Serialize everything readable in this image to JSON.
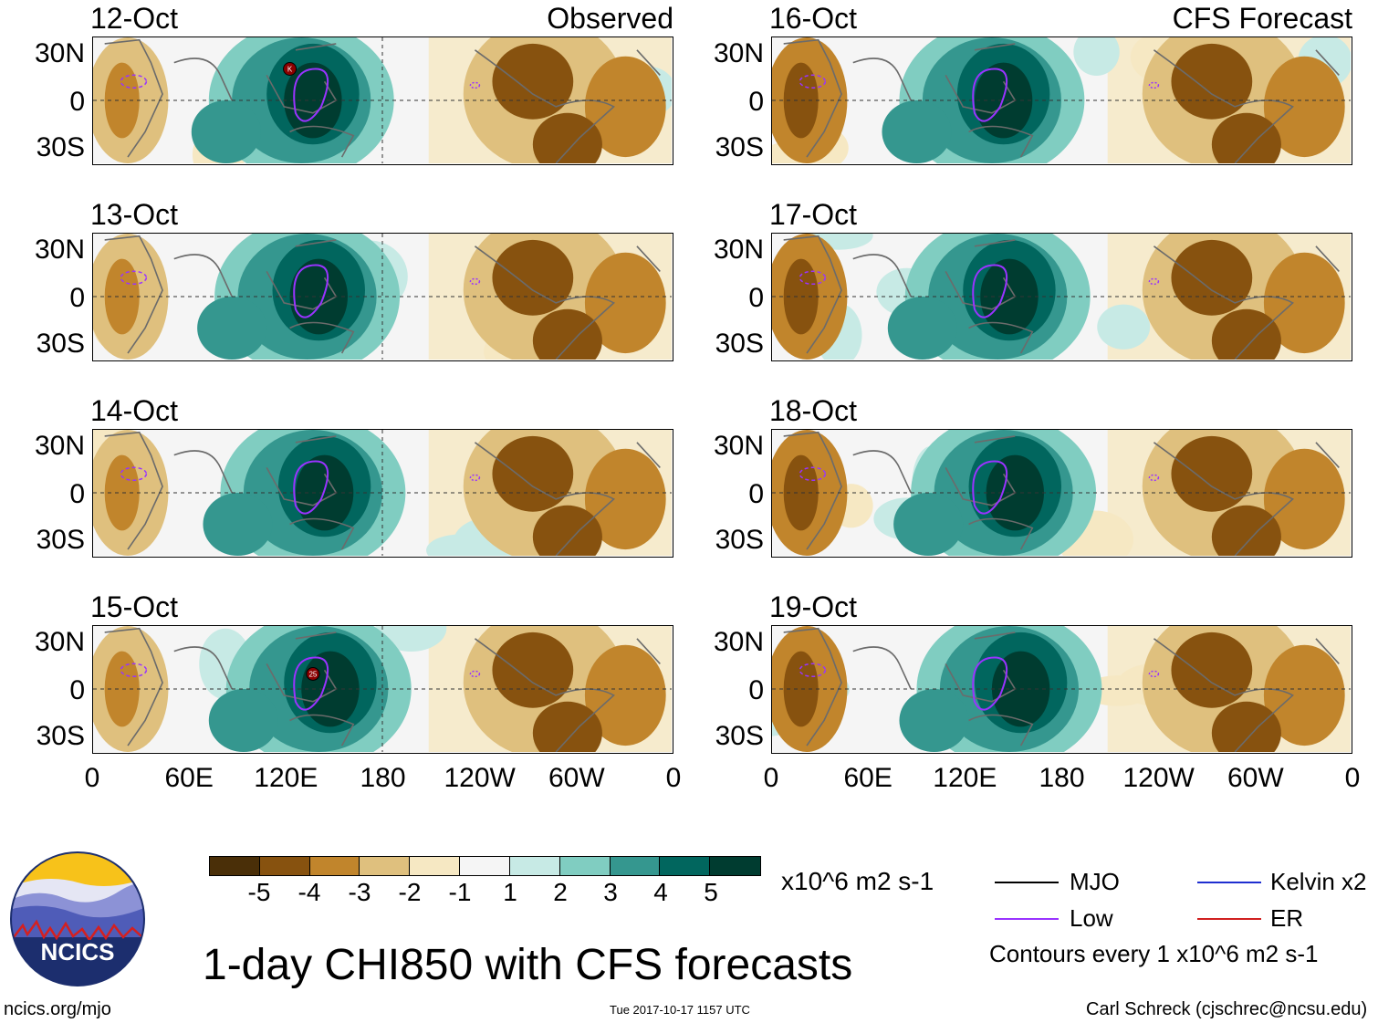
{
  "title": "1-day CHI850 with CFS forecasts",
  "columns": {
    "left_label": "Observed",
    "right_label": "CFS Forecast"
  },
  "panels": [
    {
      "date": "12-Oct",
      "side": "Observed",
      "tc_marker": "K"
    },
    {
      "date": "13-Oct",
      "side": "Observed"
    },
    {
      "date": "14-Oct",
      "side": "Observed"
    },
    {
      "date": "15-Oct",
      "side": "Observed",
      "tc_marker": "25"
    },
    {
      "date": "16-Oct",
      "side": "CFS Forecast"
    },
    {
      "date": "17-Oct",
      "side": "CFS Forecast"
    },
    {
      "date": "18-Oct",
      "side": "CFS Forecast"
    },
    {
      "date": "19-Oct",
      "side": "CFS Forecast"
    }
  ],
  "axes": {
    "lat_labels": [
      "30N",
      "0",
      "30S"
    ],
    "lon_labels": [
      "0",
      "60E",
      "120E",
      "180",
      "120W",
      "60W",
      "0"
    ]
  },
  "colorbar": {
    "colors": [
      "#4a2f08",
      "#87520f",
      "#c1852c",
      "#dfc07e",
      "#f6e8c3",
      "#f5f5f5",
      "#c7eae5",
      "#80cdc1",
      "#35978f",
      "#01665e",
      "#003c30"
    ],
    "ticks": [
      "-5",
      "-4",
      "-3",
      "-2",
      "-1",
      "1",
      "2",
      "3",
      "4",
      "5"
    ],
    "units": "x10^6 m2 s-1"
  },
  "legend": {
    "items": [
      {
        "label": "MJO",
        "color": "#000000"
      },
      {
        "label": "Kelvin x2",
        "color": "#1f2fd0"
      },
      {
        "label": "Low",
        "color": "#9933ff"
      },
      {
        "label": "ER",
        "color": "#d02020"
      }
    ],
    "contours_note": "Contours every 1 x10^6 m2 s-1"
  },
  "logo": {
    "text": "NCICS"
  },
  "footer": {
    "website": "ncics.org/mjo",
    "timestamp": "Tue 2017-10-17 1157 UTC",
    "credit": "Carl Schreck (cjschrec@ncsu.edu)"
  }
}
